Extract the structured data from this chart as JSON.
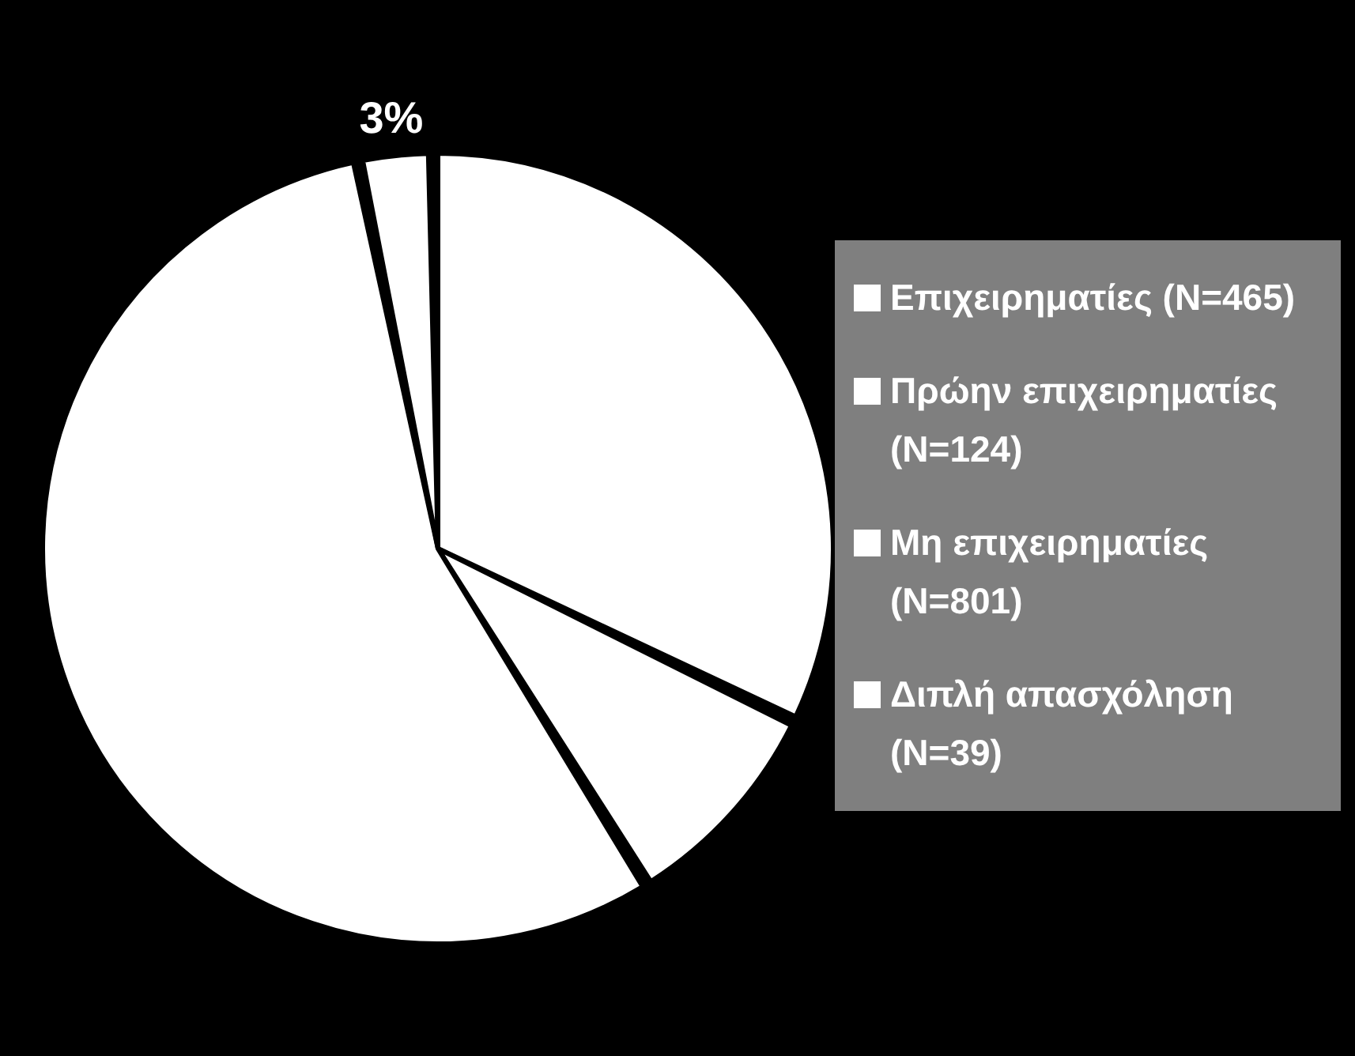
{
  "chart_data": {
    "type": "pie",
    "categories": [
      "Επιχειρηματίες (N=465)",
      "Πρώην επιχειρηματίες (N=124)",
      "Μη επιχειρηματίες (N=801)",
      "Διπλή απασχόληση (N=39)"
    ],
    "values": [
      32.5,
      8.7,
      56.1,
      2.7
    ],
    "colors": [
      "#ffffff",
      "#ffffff",
      "#ffffff",
      "#ffffff"
    ],
    "value_labels": [
      null,
      null,
      null,
      "3%"
    ],
    "legend": "right"
  }
}
